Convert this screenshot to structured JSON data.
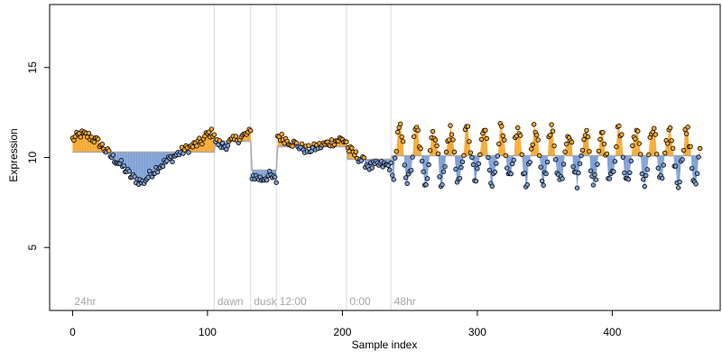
{
  "chart_data": {
    "type": "line",
    "title": "",
    "xlabel": "Sample index",
    "ylabel": "Expression",
    "xlim": [
      -17,
      480
    ],
    "ylim": [
      1.5,
      18.5
    ],
    "x_ticks": [
      0,
      100,
      200,
      300,
      400
    ],
    "y_ticks": [
      5,
      10,
      15
    ],
    "grid": false,
    "markers": "circle",
    "colors": {
      "above_fill": "#f5a830",
      "below_fill": "#7d9fd6",
      "baseline_line": "#a9a9a9",
      "marker_edge": "#000000",
      "separator": "#d9d9d9",
      "period_label": "#a6a6a6"
    },
    "periods": [
      {
        "label": "24hr",
        "x": 0
      },
      {
        "label": "dawn",
        "x": 106
      },
      {
        "label": "dusk",
        "x": 133
      },
      {
        "label": "12:00",
        "x": 152
      },
      {
        "label": "0:00",
        "x": 204
      },
      {
        "label": "48hr",
        "x": 237
      }
    ],
    "separators": [
      105,
      132,
      151,
      203,
      236
    ],
    "segments": [
      {
        "start": 0,
        "end": 105,
        "baseline": 10.3,
        "knots": [
          [
            0,
            11.0
          ],
          [
            6,
            11.3
          ],
          [
            12,
            11.2
          ],
          [
            20,
            10.8
          ],
          [
            28,
            10.1
          ],
          [
            36,
            9.6
          ],
          [
            44,
            8.9
          ],
          [
            52,
            8.6
          ],
          [
            58,
            9.1
          ],
          [
            64,
            9.5
          ],
          [
            72,
            9.9
          ],
          [
            80,
            10.3
          ],
          [
            88,
            10.6
          ],
          [
            96,
            10.9
          ],
          [
            100,
            11.3
          ],
          [
            105,
            11.4
          ]
        ]
      },
      {
        "start": 106,
        "end": 132,
        "baseline": 10.9,
        "knots": [
          [
            106,
            10.9
          ],
          [
            112,
            10.6
          ],
          [
            118,
            10.9
          ],
          [
            124,
            11.1
          ],
          [
            132,
            11.4
          ]
        ]
      },
      {
        "start": 133,
        "end": 151,
        "baseline": 9.3,
        "knots": [
          [
            133,
            9.0
          ],
          [
            140,
            8.8
          ],
          [
            146,
            9.0
          ],
          [
            151,
            8.7
          ]
        ]
      },
      {
        "start": 152,
        "end": 203,
        "baseline": 10.6,
        "knots": [
          [
            152,
            11.2
          ],
          [
            158,
            11.0
          ],
          [
            166,
            10.7
          ],
          [
            174,
            10.4
          ],
          [
            182,
            10.6
          ],
          [
            190,
            10.8
          ],
          [
            198,
            11.0
          ],
          [
            203,
            10.9
          ]
        ]
      },
      {
        "start": 204,
        "end": 236,
        "baseline": 9.9,
        "knots": [
          [
            204,
            10.5
          ],
          [
            212,
            10.0
          ],
          [
            220,
            9.5
          ],
          [
            228,
            9.6
          ],
          [
            236,
            9.5
          ]
        ]
      },
      {
        "start": 237,
        "end": 465,
        "baseline": 10.1,
        "oscillation": {
          "period": 12.5,
          "amplitude": 1.4,
          "phase": -1.2,
          "noise": 0.45
        }
      }
    ]
  }
}
